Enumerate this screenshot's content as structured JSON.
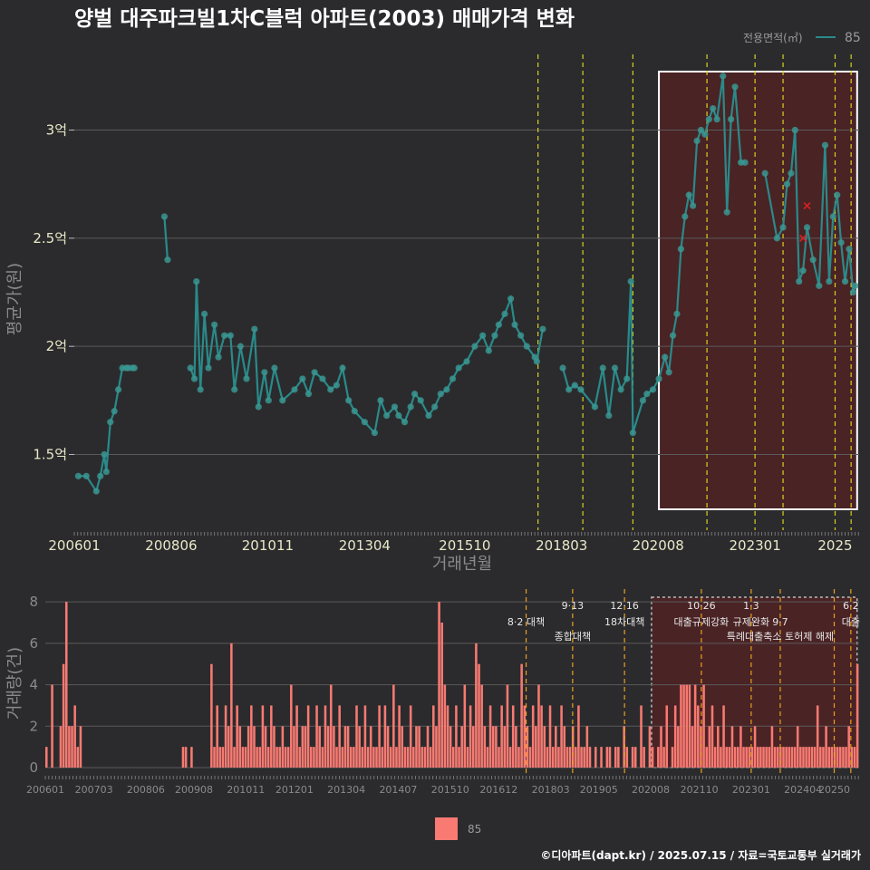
{
  "title": "양벌 대주파크빌1차C블럭 아파트(2003) 매매가격 변화",
  "footer": "©디아파트(dapt.kr) / 2025.07.15 / 자료=국토교통부 실거래가",
  "colors": {
    "background": "#2b2b2d",
    "line": "#2a8a8a",
    "point": "#3a9590",
    "bar": "#f87a72",
    "highlight_fill": "#4a2325",
    "vline": "#d8d020",
    "vline_bottom": "#e8a020",
    "grid": "#5a5a5a",
    "outlier": "#e02020"
  },
  "chart_data": [
    {
      "type": "line",
      "name": "price",
      "title": "양벌 대주파크빌1차C블럭 아파트(2003) 매매가격 변화",
      "xlabel": "거래년월",
      "ylabel": "평균가(원)",
      "xlim": [
        2006.0,
        2025.6
      ],
      "ylim": [
        1.15,
        3.35
      ],
      "y_ticks": [
        1.5,
        2.0,
        2.5,
        3.0
      ],
      "y_tick_labels": [
        "1.5억",
        "2억",
        "2.5억",
        "3억"
      ],
      "x_ticks": [
        2006.0,
        2008.42,
        2010.83,
        2013.25,
        2015.75,
        2018.17,
        2020.58,
        2023.0,
        2025.0
      ],
      "x_tick_labels": [
        "200601",
        "200806",
        "201011",
        "201304",
        "201510",
        "201803",
        "202008",
        "202301",
        "2025"
      ],
      "legend": {
        "title": "전용면적(㎡)",
        "entries": [
          "85"
        ],
        "position": "top-right"
      },
      "highlight_range": [
        2020.6,
        2025.55
      ],
      "policy_lines": [
        2017.58,
        2018.7,
        2019.95,
        2021.8,
        2023.0,
        2023.7,
        2025.0,
        2025.4
      ],
      "series": [
        {
          "name": "85",
          "x": [
            2006.1,
            2006.3,
            2006.55,
            2006.65,
            2006.75,
            2006.8,
            2006.9,
            2007.0,
            2007.1,
            2007.2,
            2007.3,
            2007.35,
            2007.45,
            2007.5,
            2008.25,
            2008.33,
            2008.9,
            2009.0,
            2009.05,
            2009.15,
            2009.25,
            2009.35,
            2009.5,
            2009.6,
            2009.75,
            2009.9,
            2010.0,
            2010.15,
            2010.3,
            2010.5,
            2010.6,
            2010.75,
            2010.85,
            2011.0,
            2011.2,
            2011.5,
            2011.7,
            2011.85,
            2012.0,
            2012.2,
            2012.4,
            2012.55,
            2012.7,
            2012.85,
            2013.0,
            2013.25,
            2013.5,
            2013.65,
            2013.8,
            2014.0,
            2014.1,
            2014.25,
            2014.4,
            2014.5,
            2014.65,
            2014.85,
            2015.0,
            2015.15,
            2015.3,
            2015.45,
            2015.6,
            2015.8,
            2016.0,
            2016.2,
            2016.35,
            2016.5,
            2016.6,
            2016.75,
            2016.9,
            2017.0,
            2017.15,
            2017.3,
            2017.5,
            2017.55,
            2017.7,
            2018.2,
            2018.35,
            2018.5,
            2018.65,
            2019.0,
            2019.2,
            2019.35,
            2019.5,
            2019.65,
            2019.8,
            2019.9,
            2019.95,
            2020.2,
            2020.3,
            2020.45,
            2020.6,
            2020.75,
            2020.85,
            2020.95,
            2021.05,
            2021.15,
            2021.25,
            2021.35,
            2021.45,
            2021.55,
            2021.65,
            2021.75,
            2021.85,
            2021.95,
            2022.05,
            2022.2,
            2022.3,
            2022.4,
            2022.5,
            2022.65,
            2022.75,
            2023.25,
            2023.55,
            2023.7,
            2023.8,
            2023.9,
            2024.0,
            2024.1,
            2024.2,
            2024.3,
            2024.45,
            2024.6,
            2024.75,
            2024.85,
            2024.95,
            2025.05,
            2025.15,
            2025.25,
            2025.35,
            2025.45,
            2025.5
          ],
          "y": [
            1.4,
            1.4,
            1.33,
            1.4,
            1.5,
            1.42,
            1.65,
            1.7,
            1.8,
            1.9,
            1.9,
            1.9,
            1.9,
            1.9,
            2.6,
            2.4,
            1.9,
            1.85,
            2.3,
            1.8,
            2.15,
            1.9,
            2.1,
            1.95,
            2.05,
            2.05,
            1.8,
            2.0,
            1.85,
            2.08,
            1.72,
            1.88,
            1.75,
            1.9,
            1.75,
            1.8,
            1.85,
            1.78,
            1.88,
            1.85,
            1.8,
            1.82,
            1.9,
            1.75,
            1.7,
            1.65,
            1.6,
            1.75,
            1.68,
            1.72,
            1.68,
            1.65,
            1.72,
            1.78,
            1.75,
            1.68,
            1.72,
            1.78,
            1.8,
            1.85,
            1.9,
            1.93,
            2.0,
            2.05,
            1.98,
            2.05,
            2.1,
            2.15,
            2.22,
            2.1,
            2.05,
            2.0,
            1.95,
            1.93,
            2.08,
            1.9,
            1.8,
            1.82,
            1.8,
            1.72,
            1.9,
            1.68,
            1.9,
            1.8,
            1.85,
            2.3,
            1.6,
            1.75,
            1.78,
            1.8,
            1.85,
            1.95,
            1.88,
            2.05,
            2.15,
            2.45,
            2.6,
            2.7,
            2.65,
            2.95,
            3.0,
            2.98,
            3.05,
            3.1,
            3.05,
            3.25,
            2.62,
            3.05,
            3.2,
            2.85,
            2.85,
            2.8,
            2.5,
            2.55,
            2.75,
            2.8,
            3.0,
            2.3,
            2.35,
            2.55,
            2.4,
            2.28,
            2.93,
            2.3,
            2.6,
            2.7,
            2.48,
            2.3,
            2.45,
            2.25,
            2.28
          ]
        }
      ],
      "outliers": [
        {
          "x": 2024.3,
          "y": 2.65
        },
        {
          "x": 2024.2,
          "y": 2.5
        }
      ]
    },
    {
      "type": "bar",
      "name": "volume",
      "ylabel": "거래량(건)",
      "xlim": [
        2006.0,
        2025.6
      ],
      "ylim": [
        0,
        8.4
      ],
      "y_ticks": [
        0,
        2,
        4,
        6,
        8
      ],
      "x_ticks": [
        2006.0,
        2007.17,
        2008.42,
        2009.58,
        2010.83,
        2012.0,
        2013.25,
        2014.5,
        2015.75,
        2016.92,
        2018.17,
        2019.33,
        2020.58,
        2021.75,
        2023.0,
        2024.25,
        2025.0
      ],
      "x_tick_labels": [
        "200601",
        "200703",
        "200806",
        "200908",
        "201011",
        "201201",
        "201304",
        "201407",
        "201510",
        "201612",
        "201803",
        "201905",
        "202008",
        "202110",
        "202301",
        "202404",
        "20250"
      ],
      "legend": {
        "entries": [
          "85"
        ],
        "position": "bottom-center"
      },
      "highlight_range": [
        2020.6,
        2025.55
      ],
      "policy_lines": [
        2017.58,
        2018.7,
        2019.95,
        2021.8,
        2023.0,
        2023.7,
        2025.0,
        2025.4
      ],
      "annotations": [
        {
          "x": 2017.58,
          "label": "8·2 대책",
          "row": 2
        },
        {
          "x": 2018.7,
          "label": "9·13",
          "row": 1
        },
        {
          "x": 2018.7,
          "label": "종합대책",
          "row": 3
        },
        {
          "x": 2019.95,
          "label": "12·16",
          "row": 1
        },
        {
          "x": 2019.95,
          "label": "18차대책",
          "row": 2
        },
        {
          "x": 2021.8,
          "label": "10·26",
          "row": 1
        },
        {
          "x": 2021.8,
          "label": "대출규제강화",
          "row": 2
        },
        {
          "x": 2023.0,
          "label": "1·3",
          "row": 1
        },
        {
          "x": 2023.0,
          "label": "규제완화",
          "row": 2
        },
        {
          "x": 2023.7,
          "label": "9·7",
          "row": 2
        },
        {
          "x": 2023.7,
          "label": "특례대출축소 토허제 해제",
          "row": 3
        },
        {
          "x": 2025.4,
          "label": "6·2",
          "row": 1
        },
        {
          "x": 2025.4,
          "label": "대출",
          "row": 2
        }
      ],
      "values": [
        1,
        0,
        4,
        0,
        0,
        2,
        5,
        8,
        2,
        2,
        3,
        1,
        2,
        0,
        0,
        0,
        0,
        0,
        0,
        0,
        0,
        0,
        0,
        0,
        0,
        0,
        0,
        0,
        0,
        0,
        0,
        0,
        0,
        0,
        0,
        0,
        0,
        0,
        0,
        0,
        0,
        0,
        0,
        0,
        0,
        0,
        0,
        0,
        1,
        1,
        0,
        1,
        0,
        0,
        0,
        0,
        0,
        0,
        5,
        1,
        3,
        1,
        1,
        3,
        2,
        6,
        1,
        3,
        2,
        1,
        1,
        2,
        3,
        2,
        1,
        1,
        3,
        2,
        1,
        3,
        2,
        1,
        1,
        2,
        1,
        1,
        4,
        2,
        3,
        1,
        2,
        2,
        3,
        1,
        1,
        3,
        2,
        1,
        3,
        2,
        4,
        2,
        1,
        3,
        1,
        2,
        2,
        1,
        1,
        3,
        2,
        1,
        3,
        1,
        2,
        1,
        1,
        3,
        1,
        3,
        2,
        1,
        4,
        1,
        3,
        2,
        1,
        1,
        3,
        1,
        2,
        2,
        1,
        1,
        2,
        1,
        3,
        2,
        8,
        7,
        4,
        3,
        2,
        1,
        3,
        1,
        2,
        4,
        1,
        3,
        2,
        6,
        5,
        4,
        2,
        1,
        3,
        2,
        2,
        1,
        3,
        2,
        4,
        1,
        3,
        2,
        1,
        5,
        3,
        2,
        1,
        3,
        2,
        4,
        3,
        2,
        1,
        3,
        1,
        2,
        1,
        3,
        2,
        1,
        1,
        2,
        1,
        3,
        1,
        1,
        2,
        1,
        0,
        1,
        0,
        1,
        0,
        1,
        1,
        0,
        1,
        1,
        0,
        2,
        1,
        0,
        1,
        1,
        0,
        3,
        1,
        0,
        2,
        1,
        0,
        1,
        2,
        1,
        3,
        0,
        1,
        3,
        2,
        4,
        4,
        4,
        4,
        2,
        4,
        3,
        2,
        4,
        1,
        2,
        3,
        1,
        2,
        1,
        3,
        1,
        1,
        2,
        1,
        1,
        2,
        1,
        1,
        1,
        1,
        2,
        1,
        1,
        1,
        1,
        1,
        2,
        1,
        1,
        1,
        1,
        1,
        1,
        1,
        1,
        2,
        1,
        1,
        1,
        1,
        1,
        1,
        3,
        1,
        1,
        2,
        1,
        1,
        1,
        1,
        1,
        1,
        1,
        2,
        1,
        1,
        5
      ]
    }
  ]
}
